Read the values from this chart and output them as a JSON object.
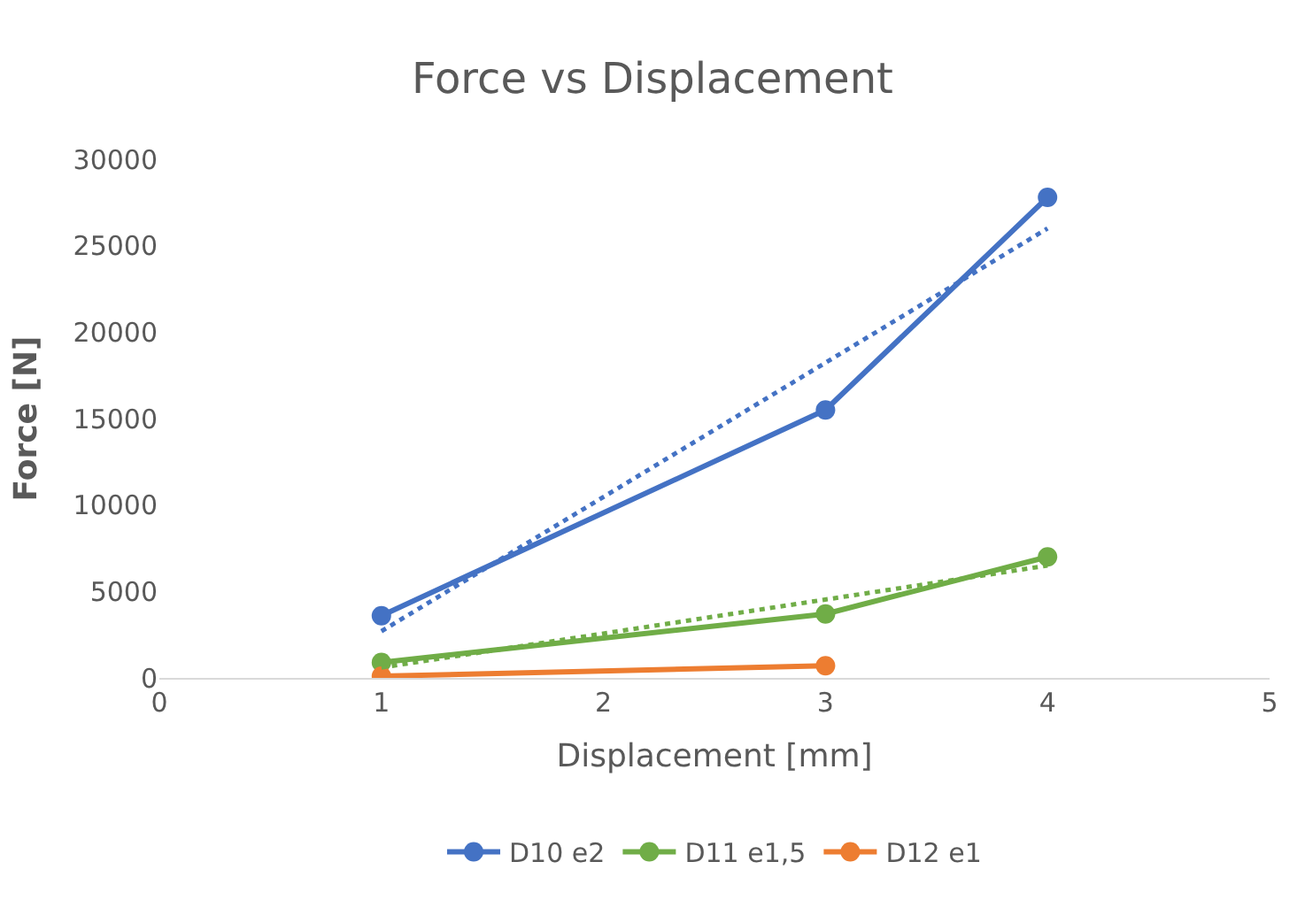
{
  "chart_data": {
    "type": "line",
    "title": "Force vs Displacement",
    "xlabel": "Displacement [mm]",
    "ylabel": "Force [N]",
    "series": [
      {
        "name": "D10 e2",
        "color": "#4472c4",
        "x": [
          1,
          3,
          4
        ],
        "values": [
          3600,
          15500,
          27800
        ],
        "marker": "circle",
        "line_style": "solid"
      },
      {
        "name": "D11 e1,5",
        "color": "#70ad47",
        "x": [
          1,
          3,
          4
        ],
        "values": [
          900,
          3700,
          7000
        ],
        "marker": "circle",
        "line_style": "solid"
      },
      {
        "name": "D12 e1",
        "color": "#ed7d31",
        "x": [
          1,
          3
        ],
        "values": [
          100,
          700
        ],
        "marker": "circle",
        "line_style": "solid"
      },
      {
        "color": "#4472c4",
        "x": [
          1,
          4
        ],
        "values": [
          2700,
          26000
        ],
        "marker": "none",
        "line_style": "dotted"
      },
      {
        "color": "#70ad47",
        "x": [
          1,
          4
        ],
        "values": [
          600,
          6500
        ],
        "marker": "none",
        "line_style": "dotted"
      }
    ],
    "xlim": [
      0,
      5
    ],
    "xticks": [
      0,
      1,
      2,
      3,
      4,
      5
    ],
    "ylim": [
      0,
      30000
    ],
    "yticks": [
      0,
      5000,
      10000,
      15000,
      20000,
      25000,
      30000
    ],
    "grid": false,
    "legend": "bottom"
  }
}
